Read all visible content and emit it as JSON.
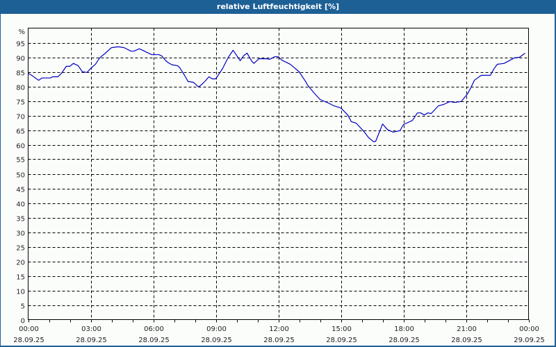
{
  "window": {
    "title": "relative Luftfeuchtigkeit [%]"
  },
  "colors": {
    "frame": "#1d6096",
    "background": "#fbfdfb",
    "series": "#0000c0",
    "grid": "#000000",
    "axis_text": "#222222"
  },
  "chart_data": {
    "type": "line",
    "title": "relative Luftfeuchtigkeit [%]",
    "xlabel": "",
    "ylabel": "%",
    "ylim": [
      0,
      100
    ],
    "xlim_hours": [
      0,
      24
    ],
    "grid": true,
    "grid_style": "dashed",
    "legend": "none",
    "y_ticks": [
      0,
      5,
      10,
      15,
      20,
      25,
      30,
      35,
      40,
      45,
      50,
      55,
      60,
      65,
      70,
      75,
      80,
      85,
      90,
      95
    ],
    "y_unit_label": "%",
    "x_ticks": [
      {
        "hour": 0,
        "time": "00:00",
        "date": "28.09.25"
      },
      {
        "hour": 3,
        "time": "03:00",
        "date": "28.09.25"
      },
      {
        "hour": 6,
        "time": "06:00",
        "date": "28.09.25"
      },
      {
        "hour": 9,
        "time": "09:00",
        "date": "28.09.25"
      },
      {
        "hour": 12,
        "time": "12:00",
        "date": "28.09.25"
      },
      {
        "hour": 15,
        "time": "15:00",
        "date": "28.09.25"
      },
      {
        "hour": 18,
        "time": "18:00",
        "date": "28.09.25"
      },
      {
        "hour": 21,
        "time": "21:00",
        "date": "28.09.25"
      },
      {
        "hour": 24,
        "time": "00:00",
        "date": "29.09.25"
      }
    ],
    "minor_tick_interval_hours": 1,
    "series": [
      {
        "name": "relative Luftfeuchtigkeit",
        "x_unit": "hours since 28.09.25 00:00",
        "points": [
          [
            0.0,
            84.5
          ],
          [
            0.17,
            83.8
          ],
          [
            0.5,
            82.1
          ],
          [
            0.67,
            82.9
          ],
          [
            1.07,
            82.9
          ],
          [
            1.17,
            83.3
          ],
          [
            1.43,
            83.3
          ],
          [
            1.6,
            84.5
          ],
          [
            1.83,
            86.9
          ],
          [
            2.0,
            86.9
          ],
          [
            2.17,
            87.9
          ],
          [
            2.4,
            87.1
          ],
          [
            2.6,
            85.0
          ],
          [
            2.83,
            84.8
          ],
          [
            3.0,
            86.2
          ],
          [
            3.23,
            87.6
          ],
          [
            3.43,
            89.8
          ],
          [
            3.67,
            91.2
          ],
          [
            4.0,
            93.3
          ],
          [
            4.33,
            93.6
          ],
          [
            4.6,
            93.3
          ],
          [
            4.93,
            92.1
          ],
          [
            5.07,
            92.1
          ],
          [
            5.33,
            92.9
          ],
          [
            5.43,
            92.6
          ],
          [
            5.77,
            91.4
          ],
          [
            5.93,
            90.9
          ],
          [
            6.27,
            90.9
          ],
          [
            6.4,
            90.5
          ],
          [
            6.6,
            88.8
          ],
          [
            6.73,
            88.1
          ],
          [
            6.9,
            87.4
          ],
          [
            7.17,
            87.1
          ],
          [
            7.27,
            86.4
          ],
          [
            7.5,
            83.8
          ],
          [
            7.67,
            81.7
          ],
          [
            7.93,
            81.4
          ],
          [
            8.17,
            79.8
          ],
          [
            8.33,
            80.7
          ],
          [
            8.5,
            81.9
          ],
          [
            8.67,
            83.3
          ],
          [
            8.83,
            82.6
          ],
          [
            9.0,
            82.6
          ],
          [
            9.33,
            86.2
          ],
          [
            9.6,
            90.0
          ],
          [
            9.83,
            92.4
          ],
          [
            10.17,
            88.8
          ],
          [
            10.33,
            90.5
          ],
          [
            10.5,
            91.4
          ],
          [
            10.73,
            88.6
          ],
          [
            10.83,
            87.9
          ],
          [
            11.07,
            89.5
          ],
          [
            11.4,
            89.5
          ],
          [
            11.6,
            89.3
          ],
          [
            11.83,
            90.2
          ],
          [
            12.0,
            90.2
          ],
          [
            12.17,
            89.0
          ],
          [
            12.57,
            87.6
          ],
          [
            13.0,
            85.0
          ],
          [
            13.33,
            81.4
          ],
          [
            13.4,
            80.5
          ],
          [
            13.67,
            78.1
          ],
          [
            14.0,
            75.5
          ],
          [
            14.17,
            75.0
          ],
          [
            14.4,
            74.3
          ],
          [
            14.67,
            73.3
          ],
          [
            15.0,
            72.6
          ],
          [
            15.33,
            70.2
          ],
          [
            15.5,
            67.9
          ],
          [
            15.73,
            67.4
          ],
          [
            16.07,
            64.8
          ],
          [
            16.33,
            62.4
          ],
          [
            16.57,
            61.0
          ],
          [
            16.67,
            61.2
          ],
          [
            17.0,
            67.1
          ],
          [
            17.23,
            65.2
          ],
          [
            17.5,
            64.3
          ],
          [
            17.83,
            64.8
          ],
          [
            18.0,
            66.9
          ],
          [
            18.43,
            68.3
          ],
          [
            18.67,
            70.9
          ],
          [
            18.83,
            70.9
          ],
          [
            19.0,
            70.2
          ],
          [
            19.17,
            70.9
          ],
          [
            19.33,
            70.7
          ],
          [
            19.67,
            73.3
          ],
          [
            19.93,
            73.8
          ],
          [
            20.23,
            74.8
          ],
          [
            20.43,
            74.5
          ],
          [
            20.77,
            74.8
          ],
          [
            21.07,
            77.4
          ],
          [
            21.23,
            79.5
          ],
          [
            21.4,
            82.1
          ],
          [
            21.73,
            83.8
          ],
          [
            22.17,
            83.8
          ],
          [
            22.33,
            85.9
          ],
          [
            22.5,
            87.6
          ],
          [
            22.83,
            87.9
          ],
          [
            23.33,
            89.8
          ],
          [
            23.57,
            90.0
          ],
          [
            23.83,
            91.4
          ]
        ]
      }
    ]
  }
}
